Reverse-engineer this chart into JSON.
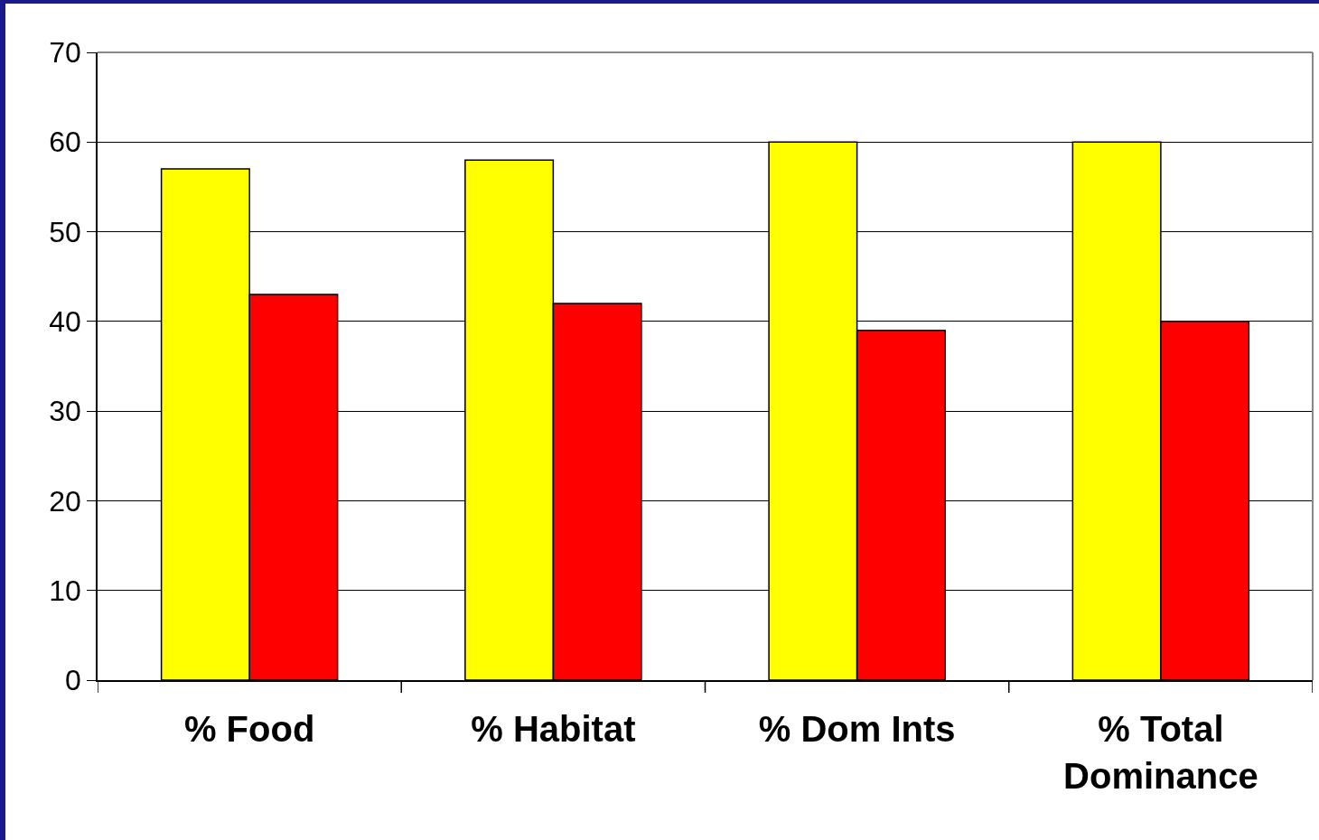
{
  "chart_data": {
    "type": "bar",
    "categories": [
      "% Food",
      "% Habitat",
      "% Dom Ints",
      "% Total Dominance"
    ],
    "series": [
      {
        "color": "#ffff00",
        "values": [
          57,
          58,
          60,
          60
        ]
      },
      {
        "color": "#ff0000",
        "values": [
          43,
          42,
          39,
          40
        ]
      }
    ],
    "ylim": [
      0,
      70
    ],
    "yticks": [
      0,
      10,
      20,
      30,
      40,
      50,
      60,
      70
    ],
    "grid": "y"
  }
}
